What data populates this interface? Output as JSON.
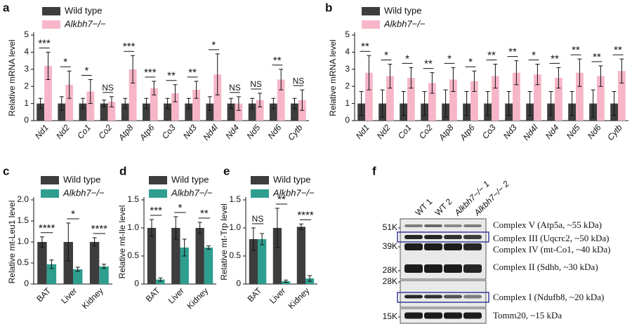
{
  "chart_data": [
    {
      "type": "bar",
      "title": "a",
      "y_label": "Relative mRNA level",
      "categories": [
        "Nd1",
        "Nd2",
        "Co1",
        "Co2",
        "Atp8",
        "Atp6",
        "Co3",
        "Nd3",
        "Nd4l",
        "Nd4",
        "Nd5",
        "Nd6",
        "Cytb"
      ],
      "series": [
        {
          "name": "Wild type",
          "color": "#3d3d3d",
          "values": [
            1,
            1,
            1,
            1,
            1,
            1,
            1,
            1,
            1,
            1,
            1,
            1,
            1
          ],
          "errors": [
            0.3,
            0.4,
            0.3,
            0.2,
            0.3,
            0.3,
            0.3,
            0.3,
            0.4,
            0.3,
            0.3,
            0.3,
            0.3
          ]
        },
        {
          "name": "Alkbh7−/−",
          "color": "#f7b6c8",
          "values": [
            3.2,
            2.1,
            1.7,
            1.1,
            3.0,
            1.9,
            1.6,
            1.8,
            2.7,
            1.0,
            1.2,
            2.4,
            1.2
          ],
          "errors": [
            0.8,
            0.8,
            0.7,
            0.3,
            0.8,
            0.4,
            0.5,
            0.5,
            1.2,
            0.4,
            0.4,
            0.6,
            0.6
          ]
        }
      ],
      "significance": [
        "***",
        "*",
        "*",
        "NS",
        "***",
        "***",
        "**",
        "**",
        "*",
        "NS",
        "NS",
        "**",
        "NS"
      ],
      "ylim": [
        0,
        5
      ],
      "yticks": [
        0,
        1,
        2,
        3,
        4,
        5
      ],
      "legend": "upper left"
    },
    {
      "type": "bar",
      "title": "b",
      "y_label": "Relative mRNA level",
      "categories": [
        "Nd1",
        "Nd2",
        "Co1",
        "Co2",
        "Atp8",
        "Atp6",
        "Co3",
        "Nd3",
        "Nd4l",
        "Nd4",
        "Nd5",
        "Nd6",
        "Cytb"
      ],
      "series": [
        {
          "name": "Wild type",
          "color": "#3d3d3d",
          "values": [
            1,
            1,
            1,
            1,
            1,
            1,
            1,
            1,
            1,
            1,
            1,
            1,
            1
          ],
          "errors": [
            0.7,
            0.8,
            0.7,
            0.7,
            0.8,
            0.7,
            0.7,
            0.7,
            0.7,
            0.7,
            0.7,
            0.8,
            0.7
          ]
        },
        {
          "name": "Alkbh7−/−",
          "color": "#f7b6c8",
          "values": [
            2.8,
            2.6,
            2.5,
            2.2,
            2.4,
            2.3,
            2.6,
            2.8,
            2.7,
            2.5,
            2.8,
            2.6,
            2.9
          ],
          "errors": [
            1.0,
            0.7,
            0.6,
            0.6,
            0.7,
            0.6,
            0.7,
            0.7,
            0.6,
            0.6,
            0.8,
            0.6,
            0.7
          ]
        }
      ],
      "significance": [
        "**",
        "*",
        "*",
        "**",
        "*",
        "*",
        "**",
        "**",
        "*",
        "**",
        "**",
        "**",
        "**"
      ],
      "ylim": [
        0,
        5
      ],
      "yticks": [
        0,
        1,
        2,
        3,
        4,
        5
      ],
      "legend": "upper left"
    },
    {
      "type": "bar",
      "title": "c",
      "y_label": "Relative mt-Leu1 level",
      "categories": [
        "BAT",
        "Liver",
        "Kidney"
      ],
      "series": [
        {
          "name": "Wild type",
          "color": "#3d3d3d",
          "values": [
            1.0,
            1.0,
            1.0
          ],
          "errors": [
            0.12,
            0.45,
            0.1
          ]
        },
        {
          "name": "Alkbh7−/−",
          "color": "#2e9e8f",
          "values": [
            0.47,
            0.35,
            0.42
          ],
          "errors": [
            0.1,
            0.05,
            0.05
          ]
        }
      ],
      "significance": [
        "****",
        "*",
        "****"
      ],
      "ylim": [
        0,
        2
      ],
      "yticks": [
        0,
        0.5,
        {
          "value": 1,
          "label": "1.0"
        },
        1.5,
        {
          "value": 2,
          "label": "2.0"
        }
      ],
      "legend": "upper left"
    },
    {
      "type": "bar",
      "title": "d",
      "y_label": "Relative mt-Ile level",
      "categories": [
        "BAT",
        "Liver",
        "Kidney"
      ],
      "series": [
        {
          "name": "Wild type",
          "color": "#3d3d3d",
          "values": [
            1.0,
            1.0,
            1.0
          ],
          "errors": [
            0.15,
            0.2,
            0.1
          ]
        },
        {
          "name": "Alkbh7−/−",
          "color": "#2e9e8f",
          "values": [
            0.08,
            0.65,
            0.65
          ],
          "errors": [
            0.03,
            0.15,
            0.03
          ]
        }
      ],
      "significance": [
        "***",
        "*",
        "**"
      ],
      "ylim": [
        0,
        1.5
      ],
      "yticks": [
        0,
        0.5,
        {
          "value": 1,
          "label": "1.0"
        },
        1.5
      ],
      "legend": "upper left"
    },
    {
      "type": "bar",
      "title": "e",
      "y_label": "Relative mt-Trp level",
      "categories": [
        "BAT",
        "Liver",
        "Kidney"
      ],
      "series": [
        {
          "name": "Wild type",
          "color": "#3d3d3d",
          "values": [
            0.8,
            1.0,
            1.02
          ],
          "errors": [
            0.2,
            0.35,
            0.05
          ]
        },
        {
          "name": "Alkbh7−/−",
          "color": "#2e9e8f",
          "values": [
            0.8,
            0.05,
            0.1
          ],
          "errors": [
            0.1,
            0.02,
            0.05
          ]
        }
      ],
      "significance": [
        "NS",
        "**",
        "****"
      ],
      "ylim": [
        0,
        1.5
      ],
      "yticks": [
        0,
        0.5,
        {
          "value": 1,
          "label": "1.0"
        },
        1.5
      ],
      "legend": "upper left"
    },
    {
      "type": "blot",
      "title": "f",
      "lanes": [
        "WT 1",
        "WT 2",
        "Alkbh7−/− 1",
        "Alkbh7−/− 2"
      ],
      "markers": [
        "51K",
        "39K",
        "28K",
        "28K",
        "15K"
      ],
      "bands": [
        "Complex V (Atp5a, ~55 kDa)",
        "Complex III (Uqcrc2, ~50 kDa)",
        "Complex IV (mt-Co1, ~40 kDa)",
        "Complex II (Sdhb, ~30 kDa)",
        "Complex I (Ndufb8, ~20 kDa)",
        "Tomm20, ~15 kDa"
      ]
    }
  ]
}
